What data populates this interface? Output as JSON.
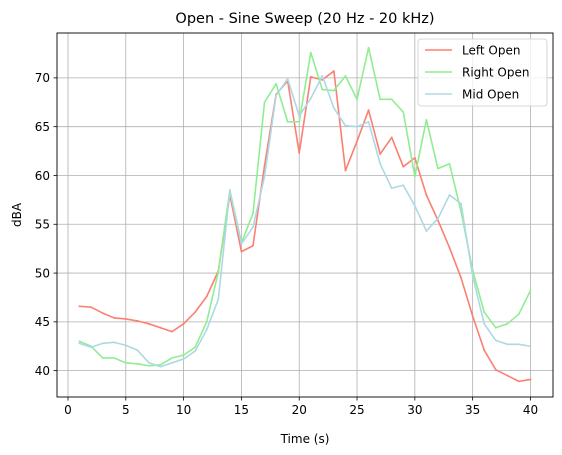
{
  "chart_data": {
    "type": "line",
    "title": "Open - Sine Sweep (20 Hz - 20 kHz)",
    "xlabel": "Time (s)",
    "ylabel": "dBA",
    "xlim": [
      -0.95,
      41.95
    ],
    "ylim": [
      37.3,
      74.6
    ],
    "xticks": [
      0,
      5,
      10,
      15,
      20,
      25,
      30,
      35,
      40
    ],
    "yticks": [
      40,
      45,
      50,
      55,
      60,
      65,
      70
    ],
    "grid": true,
    "legend_position": "top-right",
    "x": [
      1,
      2,
      3,
      4,
      5,
      6,
      7,
      8,
      9,
      10,
      11,
      12,
      13,
      14,
      15,
      16,
      17,
      18,
      19,
      20,
      21,
      22,
      23,
      24,
      25,
      26,
      27,
      28,
      29,
      30,
      31,
      32,
      33,
      34,
      35,
      36,
      37,
      38,
      39,
      40
    ],
    "series": [
      {
        "name": "Left Open",
        "color": "#fa8072",
        "values": [
          46.6,
          46.5,
          45.9,
          45.4,
          45.3,
          45.1,
          44.8,
          44.4,
          44.0,
          44.8,
          46.0,
          47.6,
          50.2,
          58.0,
          52.2,
          52.8,
          61.0,
          68.3,
          69.7,
          62.3,
          70.1,
          69.8,
          70.7,
          60.5,
          63.5,
          66.7,
          62.2,
          63.9,
          60.9,
          61.8,
          58.0,
          55.4,
          52.6,
          49.5,
          45.6,
          42.1,
          40.1,
          39.5,
          38.9,
          39.1
        ]
      },
      {
        "name": "Right Open",
        "color": "#90ee90",
        "values": [
          43.0,
          42.5,
          41.3,
          41.3,
          40.8,
          40.7,
          40.5,
          40.6,
          41.3,
          41.6,
          42.4,
          45.0,
          50.1,
          58.5,
          53.1,
          56.1,
          67.5,
          69.4,
          65.5,
          65.5,
          72.6,
          68.8,
          68.7,
          70.2,
          67.8,
          73.1,
          67.8,
          67.8,
          66.5,
          59.9,
          65.7,
          60.7,
          61.2,
          56.3,
          50.3,
          46.0,
          44.4,
          44.8,
          45.8,
          48.2
        ]
      },
      {
        "name": "Mid Open",
        "color": "#add8e6",
        "values": [
          42.8,
          42.4,
          42.8,
          42.9,
          42.6,
          42.1,
          40.8,
          40.4,
          40.8,
          41.2,
          42.0,
          44.2,
          47.3,
          58.4,
          53.0,
          54.7,
          59.9,
          68.2,
          69.9,
          66.1,
          67.9,
          70.2,
          66.9,
          65.1,
          65.0,
          65.5,
          61.2,
          58.7,
          59.0,
          56.9,
          54.3,
          55.6,
          58.0,
          57.1,
          49.7,
          44.8,
          43.1,
          42.7,
          42.7,
          42.5
        ]
      }
    ]
  }
}
